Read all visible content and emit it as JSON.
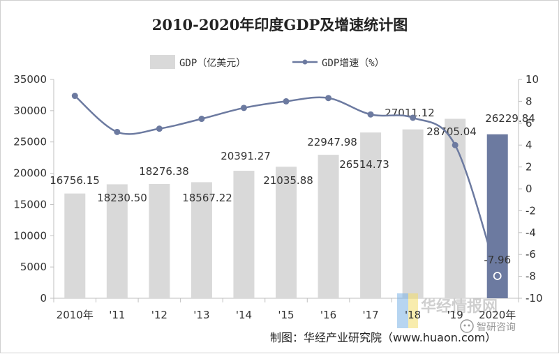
{
  "chart_data": {
    "type": "bar",
    "title": "2010-2020年印度GDP及增速统计图",
    "categories": [
      "2010年",
      "'11",
      "'12",
      "'13",
      "'14",
      "'15",
      "'16",
      "'17",
      "'18",
      "'19",
      "2020年"
    ],
    "series": [
      {
        "name": "GDP（亿美元）",
        "type": "bar",
        "axis": "left",
        "values": [
          16756.15,
          18230.5,
          18276.38,
          18567.22,
          20391.27,
          21035.88,
          22947.98,
          26514.73,
          27011.12,
          28705.04,
          26229.84
        ],
        "labels": [
          "16756.15",
          "18230.50",
          "18276.38",
          "18567.22",
          "20391.27",
          "21035.88",
          "22947.98",
          "26514.73",
          "27011.12",
          "28705.04",
          "26229.84"
        ],
        "color": "#d9d9d9",
        "highlight_color": "#6c7aa0"
      },
      {
        "name": "GDP增速（%）",
        "type": "line",
        "axis": "right",
        "values": [
          8.5,
          5.2,
          5.5,
          6.4,
          7.4,
          8.0,
          8.3,
          6.8,
          6.5,
          4.0,
          -7.96
        ],
        "labels": [
          "",
          "",
          "",
          "",
          "",
          "",
          "",
          "",
          "",
          "",
          "-7.96"
        ],
        "color": "#6c7aa0"
      }
    ],
    "yleft": {
      "ticks": [
        "0",
        "5000",
        "10000",
        "15000",
        "20000",
        "25000",
        "30000",
        "35000"
      ],
      "ylim": [
        0,
        35000
      ]
    },
    "yright": {
      "ticks": [
        "-10",
        "-8",
        "-6",
        "-4",
        "-2",
        "0",
        "2",
        "4",
        "6",
        "8",
        "10"
      ],
      "ylim": [
        -10,
        10
      ]
    },
    "grid": false,
    "legend_position": "top"
  },
  "source": "制图：华经产业研究院（www.huaon.com）",
  "watermark": "华经情报网",
  "badge": "智研咨询"
}
